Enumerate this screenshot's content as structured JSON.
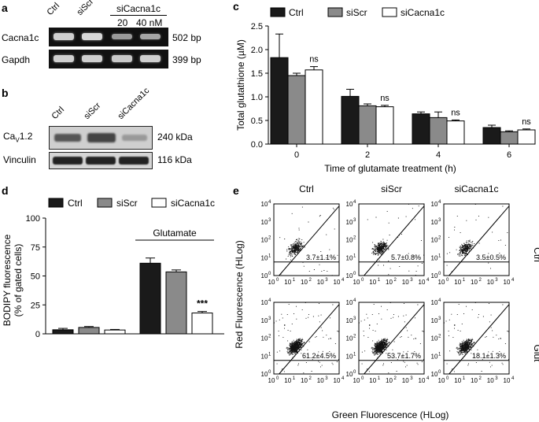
{
  "panels": {
    "a": "a",
    "b": "b",
    "c": "c",
    "d": "d",
    "e": "e"
  },
  "panel_a": {
    "lanes": [
      "Ctrl",
      "siScr"
    ],
    "group_label": "siCacna1c",
    "doses": [
      "20",
      "40 nM"
    ],
    "genes": [
      "Cacna1c",
      "Gapdh"
    ],
    "sizes": [
      "502 bp",
      "399 bp"
    ]
  },
  "panel_b": {
    "lanes": [
      "Ctrl",
      "siScr",
      "siCacna1c"
    ],
    "protein_main": "Ca",
    "protein_sub": "V",
    "protein_suffix": "1.2",
    "protein_loading": "Vinculin",
    "sizes": [
      "240 kDa",
      "116 kDa"
    ]
  },
  "colors": {
    "ctrl": "#1a1a1a",
    "siscr": "#8a8a8a",
    "sicacna1c": "#ffffff"
  },
  "legend": [
    "Ctrl",
    "siScr",
    "siCacna1c"
  ],
  "chart_data": [
    {
      "type": "bar",
      "categories": [
        "0",
        "2",
        "4",
        "6"
      ],
      "series": [
        {
          "name": "Ctrl",
          "values": [
            1.83,
            1.01,
            0.64,
            0.35
          ],
          "errors": [
            0.5,
            0.15,
            0.04,
            0.05
          ]
        },
        {
          "name": "siScr",
          "values": [
            1.45,
            0.81,
            0.56,
            0.26
          ],
          "errors": [
            0.05,
            0.04,
            0.12,
            0.02
          ]
        },
        {
          "name": "siCacna1c",
          "values": [
            1.57,
            0.79,
            0.49,
            0.3
          ],
          "errors": [
            0.07,
            0.03,
            0.02,
            0.02
          ]
        }
      ],
      "annotations": [
        "ns",
        "ns",
        "ns",
        "ns"
      ],
      "xlabel": "Time of glutamate treatment (h)",
      "ylabel": "Total glutathione (µM)",
      "ylim": [
        0,
        2.5
      ],
      "yticks": [
        "0.0",
        "0.5",
        "1.0",
        "1.5",
        "2.0",
        "2.5"
      ]
    },
    {
      "type": "bar",
      "groups": [
        "",
        "Glutamate"
      ],
      "series": [
        {
          "name": "Ctrl",
          "values": [
            3.5,
            61
          ],
          "errors": [
            1.2,
            4.5
          ]
        },
        {
          "name": "siScr",
          "values": [
            5.5,
            53.5
          ],
          "errors": [
            0.8,
            1.7
          ]
        },
        {
          "name": "siCacna1c",
          "values": [
            3.3,
            18
          ],
          "errors": [
            0.5,
            1.3
          ]
        }
      ],
      "annotation": "***",
      "ylabel_line1": "BODIPY fluorescence",
      "ylabel_line2": "(% of gated cells)",
      "ylim": [
        0,
        100
      ],
      "yticks": [
        "0",
        "25",
        "50",
        "75",
        "100"
      ]
    },
    {
      "type": "scatter",
      "columns": [
        "Ctrl",
        "siScr",
        "siCacna1c"
      ],
      "rows": [
        "Ctrl",
        "Glut"
      ],
      "percentages": [
        [
          "3.7±1.1%",
          "5.7±0.8%",
          "3.5±0.5%"
        ],
        [
          "61.2±4.5%",
          "53.7±1.7%",
          "18.1±1.3%"
        ]
      ],
      "xlabel": "Green Fluorescence (HLog)",
      "ylabel": "Red Fluorescence (HLog)",
      "tick_base": "10",
      "tick_exps": [
        "0",
        "1",
        "2",
        "3",
        "4"
      ]
    }
  ]
}
